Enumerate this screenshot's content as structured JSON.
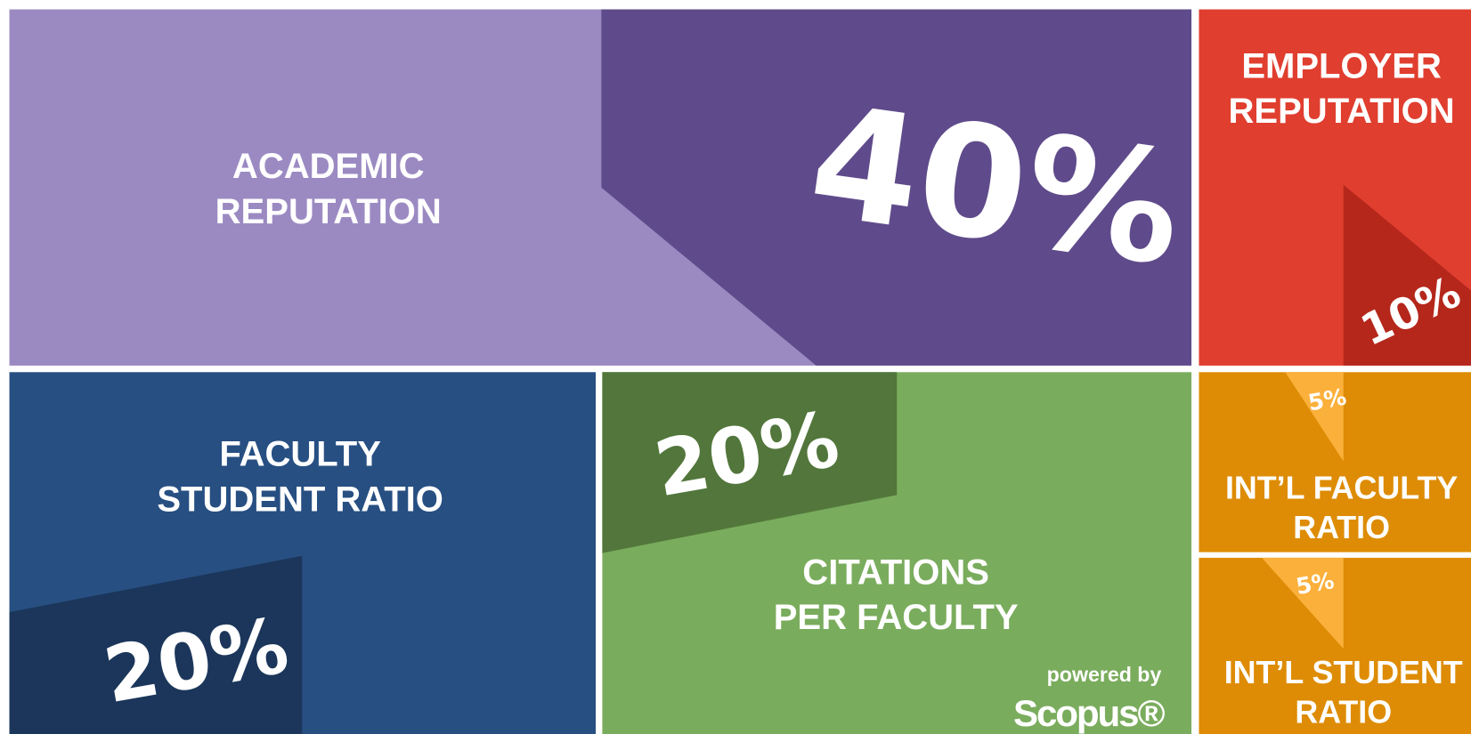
{
  "tiles": [
    {
      "label": [
        "ACADEMIC",
        "REPUTATION"
      ],
      "weight": "40%"
    },
    {
      "label": [
        "EMPLOYER",
        "REPUTATION"
      ],
      "weight": "10%"
    },
    {
      "label": [
        "FACULTY",
        "STUDENT RATIO"
      ],
      "weight": "20%"
    },
    {
      "label": [
        "CITATIONS",
        "PER FACULTY"
      ],
      "weight": "20%"
    },
    {
      "label": [
        "INT’L FACULTY",
        "RATIO"
      ],
      "weight": "5%"
    },
    {
      "label": [
        "INT’L STUDENT",
        "RATIO"
      ],
      "weight": "5%"
    }
  ],
  "branding": {
    "powered_by": "powered by",
    "logo": "Scopus®"
  }
}
